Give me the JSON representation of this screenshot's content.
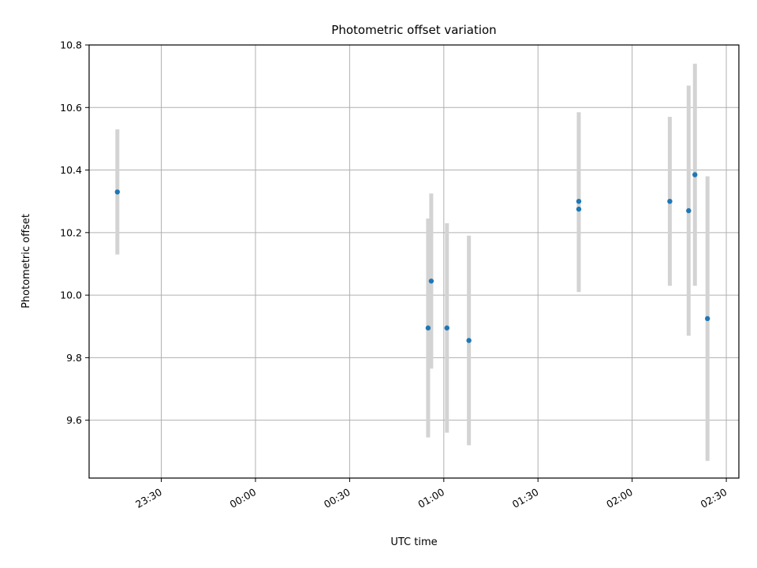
{
  "chart_data": {
    "type": "scatter",
    "title": "Photometric offset variation",
    "xlabel": "UTC time",
    "ylabel": "Photometric offset",
    "x_axis": "time",
    "xlim": [
      "23:07",
      "02:34"
    ],
    "ylim": [
      9.415,
      10.8
    ],
    "grid": true,
    "legend": "none",
    "colors": {
      "point": "#1f77b4",
      "errorbar": "#d3d3d3"
    },
    "x_ticks": [
      {
        "value": "23:30",
        "label": "23:30"
      },
      {
        "value": "00:00",
        "label": "00:00"
      },
      {
        "value": "00:30",
        "label": "00:30"
      },
      {
        "value": "01:00",
        "label": "01:00"
      },
      {
        "value": "01:30",
        "label": "01:30"
      },
      {
        "value": "02:00",
        "label": "02:00"
      },
      {
        "value": "02:30",
        "label": "02:30"
      }
    ],
    "y_ticks": [
      {
        "value": 9.6,
        "label": "9.6"
      },
      {
        "value": 9.8,
        "label": "9.8"
      },
      {
        "value": 10.0,
        "label": "10.0"
      },
      {
        "value": 10.2,
        "label": "10.2"
      },
      {
        "value": 10.4,
        "label": "10.4"
      },
      {
        "value": 10.6,
        "label": "10.6"
      },
      {
        "value": 10.8,
        "label": "10.8"
      }
    ],
    "points": [
      {
        "time": "23:16",
        "y": 10.33,
        "ylow": 10.13,
        "yhigh": 10.53
      },
      {
        "time": "00:55",
        "y": 9.895,
        "ylow": 9.545,
        "yhigh": 10.245
      },
      {
        "time": "00:56",
        "y": 10.045,
        "ylow": 9.765,
        "yhigh": 10.325
      },
      {
        "time": "01:01",
        "y": 9.895,
        "ylow": 9.56,
        "yhigh": 10.23
      },
      {
        "time": "01:08",
        "y": 9.855,
        "ylow": 9.52,
        "yhigh": 10.19
      },
      {
        "time": "01:43",
        "y": 10.3,
        "ylow": 10.015,
        "yhigh": 10.585
      },
      {
        "time": "01:43",
        "y": 10.275,
        "ylow": 10.01,
        "yhigh": 10.54
      },
      {
        "time": "02:12",
        "y": 10.3,
        "ylow": 10.03,
        "yhigh": 10.57
      },
      {
        "time": "02:18",
        "y": 10.27,
        "ylow": 9.87,
        "yhigh": 10.67
      },
      {
        "time": "02:20",
        "y": 10.385,
        "ylow": 10.03,
        "yhigh": 10.74
      },
      {
        "time": "02:24",
        "y": 9.925,
        "ylow": 9.47,
        "yhigh": 10.38
      }
    ]
  }
}
